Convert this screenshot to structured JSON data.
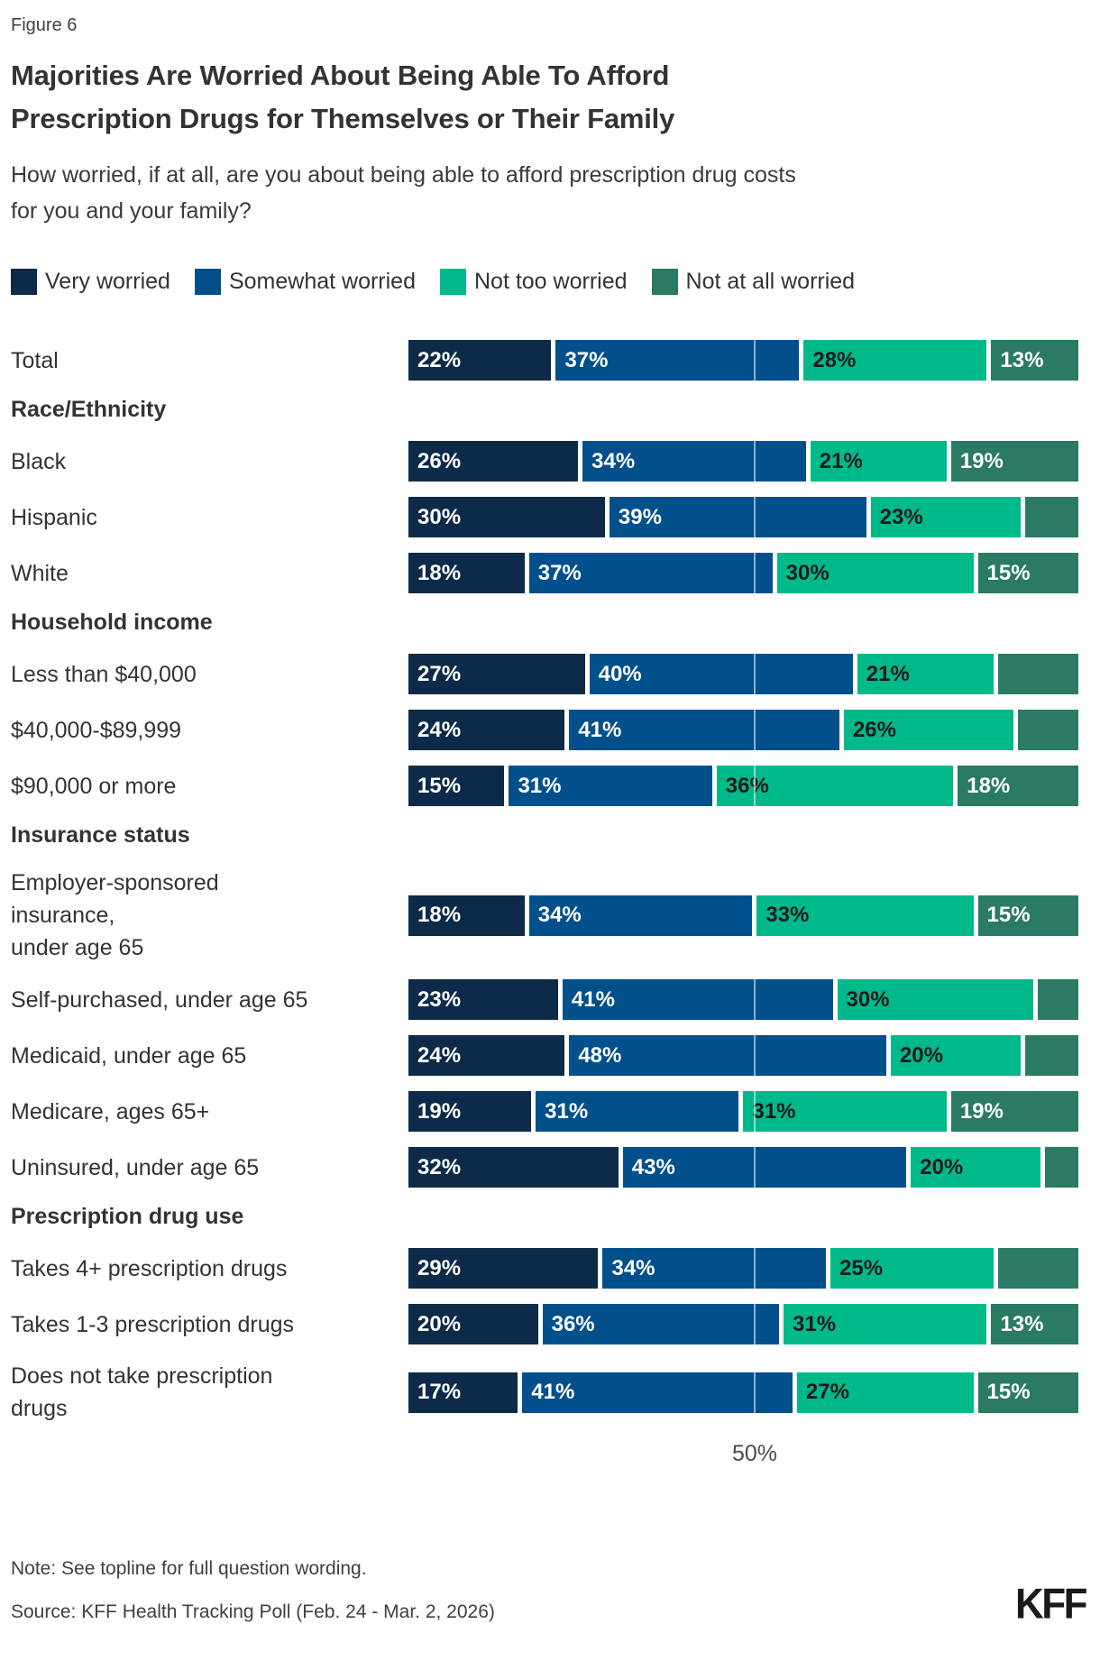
{
  "figure_label": "Figure 6",
  "title_lines": [
    "Majorities Are Worried About Being Able To Afford",
    "Prescription Drugs for Themselves or Their Family"
  ],
  "subtitle_lines": [
    "How worried, if at all, are you about being able to afford prescription drug costs",
    "for you and your family?"
  ],
  "legend": [
    {
      "label": "Very worried",
      "color": "#0d2a49"
    },
    {
      "label": "Somewhat worried",
      "color": "#01508c"
    },
    {
      "label": "Not too worried",
      "color": "#00b98b"
    },
    {
      "label": "Not at all worried",
      "color": "#2a7a64"
    }
  ],
  "axis": {
    "tick_label": "50%"
  },
  "chart_data": {
    "type": "bar",
    "orientation": "horizontal",
    "stacked": true,
    "unit": "%",
    "x_max": 100,
    "gridline_value": 50,
    "gridline_label": "50%",
    "series_names": [
      "Very worried",
      "Somewhat worried",
      "Not too worried",
      "Not at all worried"
    ],
    "series_keys": [
      "very-worried",
      "somewhat-worried",
      "not-too-worried",
      "not-at-all-worried"
    ],
    "series_colors": [
      "#0d2a49",
      "#01508c",
      "#00b98b",
      "#2a7a64"
    ],
    "label_text_colors": [
      "#ffffff",
      "#ffffff",
      "#1a1a1a",
      "#ffffff"
    ],
    "rows": [
      {
        "type": "bar",
        "label": "Total",
        "values": [
          22,
          37,
          28,
          13
        ],
        "show_labels": [
          true,
          true,
          true,
          true
        ]
      },
      {
        "type": "header",
        "label": "Race/Ethnicity"
      },
      {
        "type": "bar",
        "label": "Black",
        "values": [
          26,
          34,
          21,
          19
        ],
        "show_labels": [
          true,
          true,
          true,
          true
        ]
      },
      {
        "type": "bar",
        "label": "Hispanic",
        "values": [
          30,
          39,
          23,
          8
        ],
        "show_labels": [
          true,
          true,
          true,
          false
        ]
      },
      {
        "type": "bar",
        "label": "White",
        "values": [
          18,
          37,
          30,
          15
        ],
        "show_labels": [
          true,
          true,
          true,
          true
        ]
      },
      {
        "type": "header",
        "label": "Household income"
      },
      {
        "type": "bar",
        "label": "Less than $40,000",
        "values": [
          27,
          40,
          21,
          12
        ],
        "show_labels": [
          true,
          true,
          true,
          false
        ]
      },
      {
        "type": "bar",
        "label": "$40,000-$89,999",
        "values": [
          24,
          41,
          26,
          9
        ],
        "show_labels": [
          true,
          true,
          true,
          false
        ]
      },
      {
        "type": "bar",
        "label": "$90,000 or more",
        "values": [
          15,
          31,
          36,
          18
        ],
        "show_labels": [
          true,
          true,
          true,
          true
        ]
      },
      {
        "type": "header",
        "label": "Insurance status"
      },
      {
        "type": "bar",
        "label": "Employer-sponsored\ninsurance,\nunder age 65",
        "values": [
          18,
          34,
          33,
          15
        ],
        "show_labels": [
          true,
          true,
          true,
          true
        ]
      },
      {
        "type": "bar",
        "label": "Self-purchased, under age 65",
        "values": [
          23,
          41,
          30,
          6
        ],
        "show_labels": [
          true,
          true,
          true,
          false
        ]
      },
      {
        "type": "bar",
        "label": "Medicaid, under age 65",
        "values": [
          24,
          48,
          20,
          8
        ],
        "show_labels": [
          true,
          true,
          true,
          false
        ]
      },
      {
        "type": "bar",
        "label": "Medicare, ages 65+",
        "values": [
          19,
          31,
          31,
          19
        ],
        "show_labels": [
          true,
          true,
          true,
          true
        ]
      },
      {
        "type": "bar",
        "label": "Uninsured, under age 65",
        "values": [
          32,
          43,
          20,
          5
        ],
        "show_labels": [
          true,
          true,
          true,
          false
        ]
      },
      {
        "type": "header",
        "label": "Prescription drug use"
      },
      {
        "type": "bar",
        "label": "Takes 4+ prescription drugs",
        "values": [
          29,
          34,
          25,
          12
        ],
        "show_labels": [
          true,
          true,
          true,
          false
        ]
      },
      {
        "type": "bar",
        "label": "Takes 1-3 prescription drugs",
        "values": [
          20,
          36,
          31,
          13
        ],
        "show_labels": [
          true,
          true,
          true,
          true
        ]
      },
      {
        "type": "bar",
        "label": "Does not take prescription\ndrugs",
        "values": [
          17,
          41,
          27,
          15
        ],
        "show_labels": [
          true,
          true,
          true,
          true
        ]
      }
    ]
  },
  "note": "Note: See topline for full question wording.",
  "source": "Source: KFF Health Tracking Poll (Feb. 24 - Mar. 2, 2026)",
  "logo": "KFF"
}
